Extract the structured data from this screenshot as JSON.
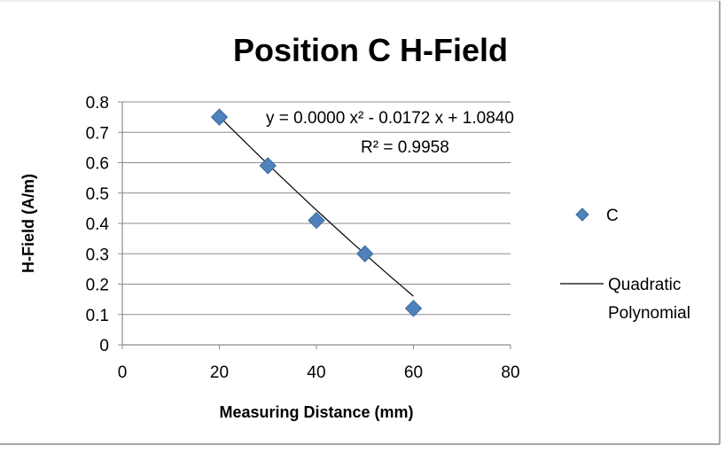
{
  "chart_data": {
    "type": "scatter",
    "title": "Position C H-Field",
    "xlabel": "Measuring Distance (mm)",
    "ylabel": "H-Field (A/m)",
    "xlim": [
      0,
      80
    ],
    "ylim": [
      0,
      0.8
    ],
    "x_ticks": [
      "0",
      "20",
      "40",
      "60",
      "80"
    ],
    "y_ticks": [
      "0",
      "0.1",
      "0.2",
      "0.3",
      "0.4",
      "0.5",
      "0.6",
      "0.7",
      "0.8"
    ],
    "grid": "horizontal",
    "legend_position": "right",
    "series": [
      {
        "name": "C",
        "marker": "diamond",
        "color": "#4f81bd",
        "x": [
          20,
          30,
          40,
          50,
          60
        ],
        "y": [
          0.75,
          0.59,
          0.41,
          0.3,
          0.12
        ]
      }
    ],
    "trendline": {
      "name": "Quadratic Polynomial",
      "color": "#000000",
      "type": "quadratic",
      "a": 3e-05,
      "b": -0.0172,
      "c": 1.084,
      "x_range": [
        20,
        60
      ],
      "equation_text": "y = 0.0000 x² - 0.0172 x + 1.0840",
      "r2_text": "R² = 0.9958"
    }
  }
}
